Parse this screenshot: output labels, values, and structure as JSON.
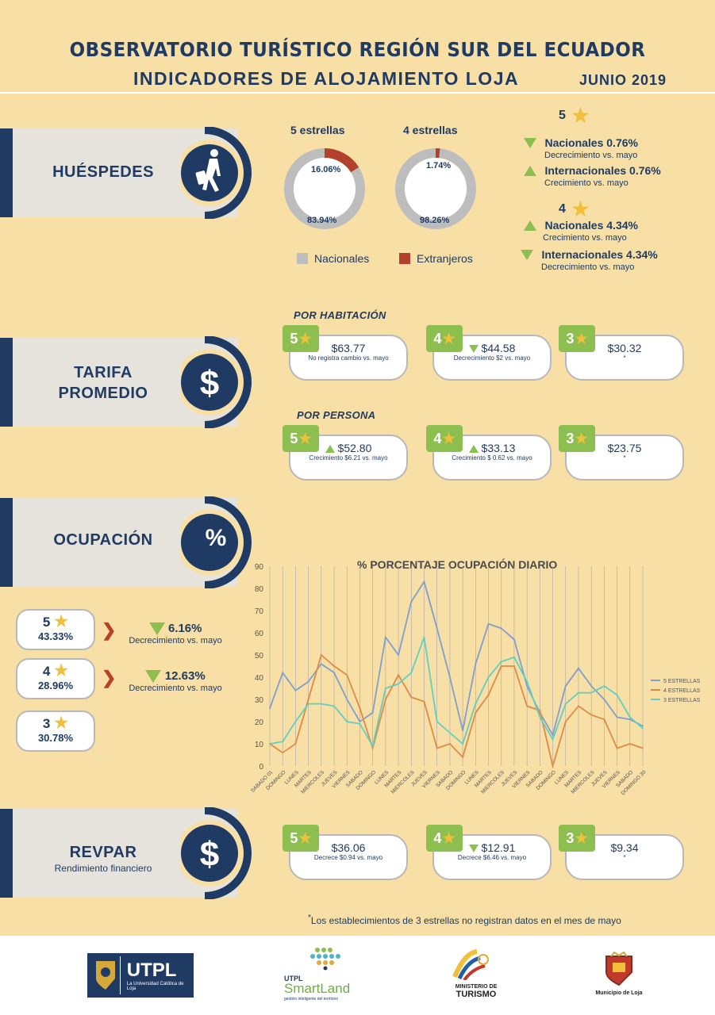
{
  "header": {
    "title": "OBSERVATORIO TURÍSTICO REGIÓN SUR DEL ECUADOR",
    "subtitle": "INDICADORES DE ALOJAMIENTO LOJA",
    "date": "JUNIO 2019"
  },
  "huespedes": {
    "label": "HUÉSPEDES",
    "icon": "traveler-icon",
    "donut5": {
      "title": "5 estrellas",
      "extranjeros": "16.06%",
      "nacionales": "83.94%",
      "extranjeros_value": 16.06
    },
    "donut4": {
      "title": "4 estrellas",
      "extranjeros": "1.74%",
      "nacionales": "98.26%",
      "extranjeros_value": 1.74
    },
    "legend": {
      "nacionales": "Nacionales",
      "extranjeros": "Extranjeros"
    },
    "colors": {
      "nacionales": "#bdbdbd",
      "extranjeros": "#b3402a"
    },
    "indicators": {
      "five_label": "5",
      "five": [
        {
          "title": "Nacionales 0.76%",
          "sub": "Decrecimiento vs. mayo",
          "dir": "down"
        },
        {
          "title": "Internacionales 0.76%",
          "sub": "Crecimiento vs. mayo",
          "dir": "up"
        }
      ],
      "four_label": "4",
      "four": [
        {
          "title": "Nacionales 4.34%",
          "sub": "Crecimiento vs. mayo",
          "dir": "up"
        },
        {
          "title": "Internacionales 4.34%",
          "sub": "Decrecimiento vs. mayo",
          "dir": "down"
        }
      ]
    }
  },
  "tarifa": {
    "label1": "TARIFA",
    "label2": "PROMEDIO",
    "icon": "dollar-icon",
    "por_habitacion": "POR HABITACIÓN",
    "por_persona": "POR PERSONA",
    "habitacion": [
      {
        "stars": "5",
        "value": "$63.77",
        "note": "No registra cambio vs. mayo",
        "dir": "none"
      },
      {
        "stars": "4",
        "value": "$44.58",
        "note": "Decrecimiento $2 vs. mayo",
        "dir": "down"
      },
      {
        "stars": "3",
        "value": "$30.32",
        "note": "*",
        "dir": "none"
      }
    ],
    "persona": [
      {
        "stars": "5",
        "value": "$52.80",
        "note": "Crecimiento $6.21 vs. mayo",
        "dir": "up"
      },
      {
        "stars": "4",
        "value": "$33.13",
        "note": "Crecimiento $ 0.62 vs. mayo",
        "dir": "up"
      },
      {
        "stars": "3",
        "value": "$23.75",
        "note": "*",
        "dir": "none"
      }
    ]
  },
  "ocupacion": {
    "label": "OCUPACIÓN",
    "icon_text": "%",
    "cards": [
      {
        "stars": "5",
        "pct": "43.33%"
      },
      {
        "stars": "4",
        "pct": "28.96%"
      },
      {
        "stars": "3",
        "pct": "30.78%"
      }
    ],
    "changes": [
      {
        "value": "6.16%",
        "sub": "Decrecimiento vs. mayo"
      },
      {
        "value": "12.63%",
        "sub": "Decrecimiento vs. mayo"
      }
    ]
  },
  "chart_data": {
    "type": "line",
    "title": "% PORCENTAJE OCUPACIÓN DIARIO",
    "ylim": [
      0,
      90
    ],
    "yticks": [
      "0",
      "10",
      "20",
      "30",
      "40",
      "50",
      "60",
      "70",
      "80",
      "90"
    ],
    "categories": [
      "SABADO 01",
      "DOMINGO",
      "LUNES",
      "MARTES",
      "MIERCOLES",
      "JUEVES",
      "VIERNES",
      "SABADO",
      "DOMINGO",
      "LUNES",
      "MARTES",
      "MIERCOLES",
      "JUEVES",
      "VIERNES",
      "SABADO",
      "DOMINGO",
      "LUNES",
      "MARTES",
      "MIERCOLES",
      "JUEVES",
      "VIERNES",
      "SABADO",
      "DOMINGO",
      "LUNES",
      "MARTES",
      "MIERCOLES",
      "JUEVES",
      "VIERNES",
      "SABADO",
      "DOMINGO 30"
    ],
    "series": [
      {
        "name": "5 ESTRELLAS",
        "color": "#7f9fcf",
        "values": [
          26,
          42,
          34,
          38,
          46,
          42,
          30,
          20,
          24,
          58,
          50,
          74,
          83,
          62,
          40,
          16,
          46,
          64,
          62,
          57,
          36,
          24,
          14,
          36,
          44,
          36,
          30,
          22,
          21,
          18
        ]
      },
      {
        "name": "4 ESTRELLAS",
        "color": "#e08a45",
        "values": [
          10,
          6,
          10,
          30,
          50,
          45,
          41,
          26,
          8,
          30,
          41,
          31,
          29,
          8,
          10,
          4,
          24,
          32,
          45,
          45,
          27,
          25,
          0,
          20,
          27,
          23,
          21,
          8,
          10,
          8
        ]
      },
      {
        "name": "3 ESTRELLAS",
        "color": "#5fd0c0",
        "values": [
          10,
          11,
          20,
          28,
          28,
          27,
          20,
          19,
          9,
          35,
          37,
          42,
          58,
          20,
          15,
          10,
          28,
          40,
          47,
          49,
          38,
          22,
          12,
          28,
          33,
          33,
          36,
          32,
          22,
          17
        ]
      }
    ]
  },
  "revpar": {
    "label": "REVPAR",
    "sub": "Rendimiento financiero",
    "icon": "dollar-icon",
    "cards": [
      {
        "stars": "5",
        "value": "$36.06",
        "note": "Decrece $0.94 vs. mayo",
        "dir": "none"
      },
      {
        "stars": "4",
        "value": "$12.91",
        "note": "Decrece $6.46 vs. mayo",
        "dir": "down"
      },
      {
        "stars": "3",
        "value": "$9.34",
        "note": "*",
        "dir": "none"
      }
    ]
  },
  "footnote": "Los establecimientos de 3 estrellas no registran datos en el mes de mayo",
  "footnote_mark": "*",
  "footer": {
    "utpl": "UTPL",
    "utpl_sub": "La Universidad Católica de Loja",
    "smartland_top": "UTPL",
    "smartland": "SmartLand",
    "smartland_sub": "gestión inteligente del territorio",
    "ministerio_top": "MINISTERIO DE",
    "ministerio": "TURISMO",
    "municipio": "Municipio de Loja"
  }
}
